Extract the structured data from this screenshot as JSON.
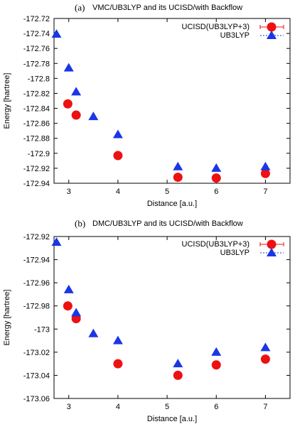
{
  "chart_data": [
    {
      "type": "scatter",
      "panel_label": "(a)",
      "title": "VMC/UB3LYP and its UCISD/with Backflow",
      "xlabel": "Distance [a.u.]",
      "ylabel": "Energy [hartree]",
      "xlim": [
        2.7,
        7.5
      ],
      "ylim": [
        -172.94,
        -172.72
      ],
      "xticks": [
        "3",
        "4",
        "5",
        "6",
        "7"
      ],
      "yticks": [
        "-172.72",
        "-172.74",
        "-172.76",
        "-172.78",
        "-172.8",
        "-172.82",
        "-172.84",
        "-172.86",
        "-172.88",
        "-172.9",
        "-172.92",
        "-172.94"
      ],
      "legend_position": "top-right",
      "series": [
        {
          "name": "UCISD(UB3LYP+3)",
          "marker": "circle",
          "color": "#ee1111",
          "x": [
            2.98,
            3.15,
            4.0,
            5.22,
            6.0,
            7.0
          ],
          "y": [
            -172.834,
            -172.849,
            -172.903,
            -172.932,
            -172.933,
            -172.927
          ]
        },
        {
          "name": "UB3LYP",
          "marker": "triangle",
          "color": "#1a36e6",
          "x": [
            2.75,
            3.0,
            3.15,
            3.5,
            4.0,
            5.22,
            6.0,
            7.0
          ],
          "y": [
            -172.741,
            -172.786,
            -172.818,
            -172.851,
            -172.875,
            -172.918,
            -172.92,
            -172.918
          ]
        }
      ]
    },
    {
      "type": "scatter",
      "panel_label": "(b)",
      "title": "DMC/UB3LYP and its UCISD/with Backflow",
      "xlabel": "Distance [a.u.]",
      "ylabel": "Energy [hartree]",
      "xlim": [
        2.7,
        7.5
      ],
      "ylim": [
        -173.06,
        -172.92
      ],
      "xticks": [
        "3",
        "4",
        "5",
        "6",
        "7"
      ],
      "yticks": [
        "-172.92",
        "-172.94",
        "-172.96",
        "-172.98",
        "-173",
        "-173.02",
        "-173.04",
        "-173.06"
      ],
      "legend_position": "top-right",
      "series": [
        {
          "name": "UCISD(UB3LYP+3)",
          "marker": "circle",
          "color": "#ee1111",
          "x": [
            2.98,
            3.15,
            4.0,
            5.22,
            6.0,
            7.0
          ],
          "y": [
            -172.98,
            -172.991,
            -173.03,
            -173.04,
            -173.031,
            -173.026
          ]
        },
        {
          "name": "UB3LYP",
          "marker": "triangle",
          "color": "#1a36e6",
          "x": [
            2.75,
            3.0,
            3.15,
            3.5,
            4.0,
            5.22,
            6.0,
            7.0
          ],
          "y": [
            -172.925,
            -172.966,
            -172.986,
            -173.004,
            -173.01,
            -173.03,
            -173.02,
            -173.016
          ]
        }
      ]
    }
  ]
}
